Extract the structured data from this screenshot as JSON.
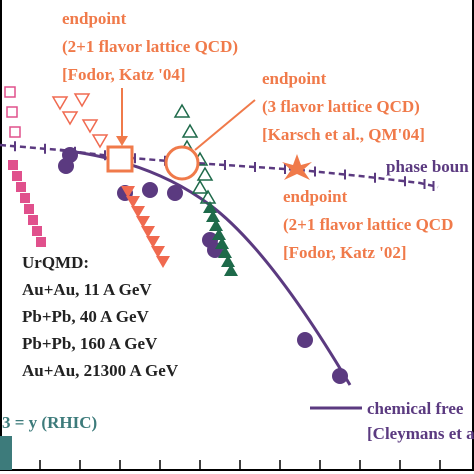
{
  "annotations": {
    "fodor04": [
      "endpoint",
      "(2+1 flavor lattice QCD)",
      "[Fodor, Katz '04]"
    ],
    "karsch": [
      "endpoint",
      "(3 flavor lattice QCD)",
      "[Karsch et al., QM'04]"
    ],
    "phase": "phase boun",
    "fodor02": [
      "endpoint",
      "(2+1 flavor lattice QCD",
      "[Fodor, Katz '02]"
    ],
    "urqmd": [
      "UrQMD:",
      "Au+Au, 11 A GeV",
      "Pb+Pb, 40 A GeV",
      "Pb+Pb, 160 A GeV",
      "Au+Au, 21300 A GeV"
    ],
    "rhic": "3 = y  (RHIC)",
    "freeze": [
      "chemical free",
      "[Cleymans et a"
    ]
  }
}
